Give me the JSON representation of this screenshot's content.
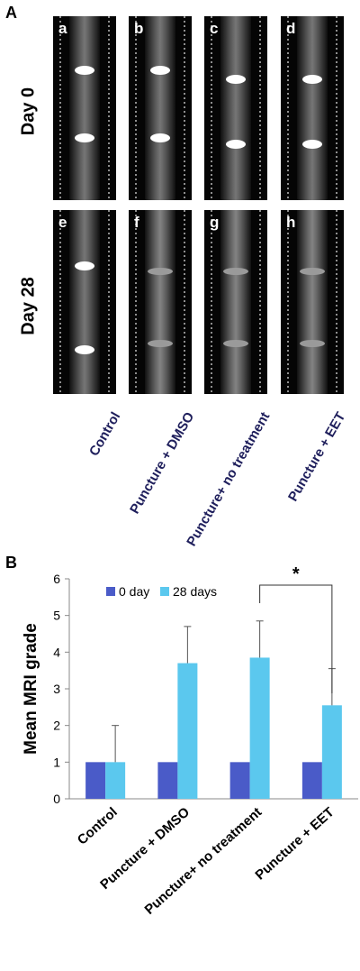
{
  "panel_a": {
    "letter": "A",
    "rows": [
      {
        "day_label": "Day 0",
        "tags": [
          "a",
          "b",
          "c",
          "d"
        ],
        "degenerate": [
          false,
          false,
          false,
          false
        ]
      },
      {
        "day_label": "Day 28",
        "tags": [
          "e",
          "f",
          "g",
          "h"
        ],
        "degenerate": [
          false,
          true,
          true,
          true
        ]
      }
    ],
    "group_labels": [
      "Control",
      "Puncture + DMSO",
      "Puncture+ no treatment",
      "Puncture + EET"
    ]
  },
  "panel_b": {
    "letter": "B"
  },
  "colors": {
    "series_0": "#4a5bc8",
    "series_1": "#5bc8ee",
    "text_dark": "#1f1f5c"
  },
  "chart_data": {
    "type": "bar",
    "categories": [
      "Control",
      "Puncture + DMSO",
      "Puncture+ no treatment",
      "Puncture + EET"
    ],
    "series": [
      {
        "name": "0 day",
        "values": [
          1,
          1,
          1,
          1
        ],
        "error": [
          0,
          0,
          0,
          0
        ]
      },
      {
        "name": "28 days",
        "values": [
          1,
          3.7,
          3.85,
          2.55
        ],
        "error": [
          1,
          1,
          1,
          1
        ]
      }
    ],
    "ylabel": "Mean MRI grade",
    "xlabel": "",
    "ylim": [
      0,
      6
    ],
    "yticks": [
      0,
      1,
      2,
      3,
      4,
      5,
      6
    ],
    "legend_position": "top",
    "significance": {
      "between": [
        "Puncture+ no treatment",
        "Puncture + EET"
      ],
      "label": "*"
    }
  }
}
